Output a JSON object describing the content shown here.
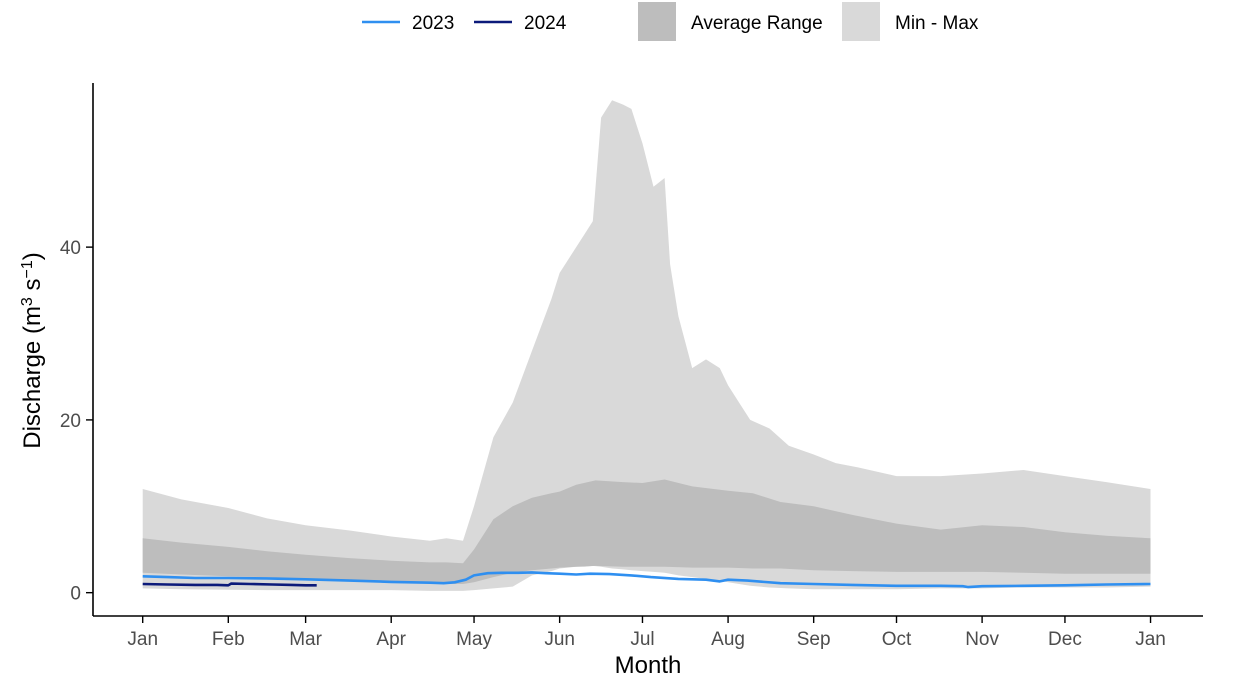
{
  "chart_data": {
    "type": "area",
    "xlabel": "Month",
    "ylabel": "Discharge (m",
    "ylabel_sup1": "3",
    "ylabel_mid": " s",
    "ylabel_sup2": "−1",
    "ylabel_end": ")",
    "x_ticks": [
      "Jan",
      "Feb",
      "Mar",
      "Apr",
      "May",
      "Jun",
      "Jul",
      "Aug",
      "Sep",
      "Oct",
      "Nov",
      "Dec",
      "Jan"
    ],
    "x_tick_days": [
      1,
      32,
      60,
      91,
      121,
      152,
      182,
      213,
      244,
      274,
      305,
      335,
      366
    ],
    "y_ticks": [
      0,
      20,
      40
    ],
    "xlim": [
      -17,
      385
    ],
    "ylim": [
      -2.7,
      59
    ],
    "grid": false,
    "legend_position": "top",
    "legend": [
      {
        "label": "2023",
        "kind": "line",
        "color": "#2f8ff0"
      },
      {
        "label": "2024",
        "kind": "line",
        "color": "#0c1a7a"
      },
      {
        "label": "Average Range",
        "kind": "fill",
        "color": "#bdbdbd"
      },
      {
        "label": "Min - Max",
        "kind": "fill",
        "color": "#d9d9d9"
      }
    ],
    "series": [
      {
        "name": "Min - Max",
        "kind": "band",
        "color": "#d9d9d9",
        "x": [
          1,
          15,
          32,
          46,
          60,
          76,
          91,
          105,
          111,
          117,
          121,
          128,
          135,
          142,
          149,
          152,
          158,
          161,
          164,
          167,
          169,
          171,
          175,
          178,
          182,
          186,
          190,
          192,
          195,
          200,
          205,
          210,
          213,
          217,
          221,
          228,
          235,
          244,
          252,
          260,
          274,
          290,
          305,
          320,
          335,
          350,
          366
        ],
        "low": [
          0.5,
          0.4,
          0.35,
          0.3,
          0.3,
          0.3,
          0.3,
          0.2,
          0.2,
          0.2,
          0.3,
          0.5,
          0.7,
          2.0,
          2.5,
          2.8,
          3.0,
          3.0,
          3.1,
          3.0,
          2.9,
          2.8,
          2.7,
          2.6,
          2.5,
          2.4,
          2.3,
          2.2,
          2.0,
          1.8,
          1.6,
          1.4,
          1.2,
          1.0,
          0.8,
          0.6,
          0.5,
          0.4,
          0.4,
          0.4,
          0.4,
          0.5,
          0.5,
          0.6,
          0.6,
          0.6,
          0.7
        ],
        "high": [
          12.0,
          10.8,
          9.8,
          8.6,
          7.8,
          7.2,
          6.5,
          6.0,
          6.3,
          6.0,
          10.0,
          18.0,
          22.0,
          28.0,
          34.0,
          37.0,
          40.0,
          41.5,
          43.0,
          55.0,
          56.0,
          57.0,
          56.5,
          56.0,
          52.0,
          47.0,
          48.0,
          38.0,
          32.0,
          26.0,
          27.0,
          26.0,
          24.0,
          22.0,
          20.0,
          19.0,
          17.0,
          16.0,
          15.0,
          14.5,
          13.5,
          13.5,
          13.8,
          14.2,
          13.5,
          12.8,
          12.0
        ]
      },
      {
        "name": "Average Range",
        "kind": "band",
        "color": "#bdbdbd",
        "x": [
          1,
          15,
          32,
          46,
          60,
          76,
          91,
          105,
          111,
          117,
          121,
          128,
          135,
          142,
          149,
          152,
          158,
          165,
          175,
          182,
          190,
          200,
          213,
          222,
          232,
          244,
          258,
          274,
          290,
          305,
          320,
          335,
          350,
          366
        ],
        "low": [
          2.3,
          2.1,
          1.9,
          1.8,
          1.6,
          1.4,
          1.3,
          1.1,
          1.0,
          1.0,
          1.2,
          1.8,
          2.3,
          2.6,
          2.8,
          2.9,
          3.0,
          3.1,
          3.0,
          3.0,
          3.0,
          2.9,
          2.9,
          2.8,
          2.8,
          2.6,
          2.5,
          2.4,
          2.4,
          2.4,
          2.3,
          2.2,
          2.2,
          2.2
        ],
        "high": [
          6.3,
          5.8,
          5.3,
          4.8,
          4.4,
          4.0,
          3.7,
          3.5,
          3.5,
          3.4,
          5.0,
          8.5,
          10.0,
          11.0,
          11.5,
          11.7,
          12.5,
          13.0,
          12.8,
          12.7,
          13.1,
          12.3,
          11.8,
          11.5,
          10.5,
          10.0,
          9.0,
          8.0,
          7.3,
          7.8,
          7.6,
          7.0,
          6.6,
          6.3
        ]
      },
      {
        "name": "2023",
        "kind": "line",
        "color": "#2f8ff0",
        "x": [
          1,
          10,
          20,
          32,
          46,
          60,
          76,
          91,
          105,
          110,
          114,
          118,
          121,
          126,
          131,
          137,
          142,
          147,
          152,
          158,
          163,
          170,
          178,
          185,
          195,
          205,
          210,
          213,
          220,
          232,
          244,
          258,
          274,
          290,
          298,
          300,
          305,
          320,
          335,
          350,
          366
        ],
        "y": [
          1.9,
          1.8,
          1.7,
          1.7,
          1.65,
          1.55,
          1.4,
          1.25,
          1.15,
          1.1,
          1.2,
          1.5,
          2.0,
          2.25,
          2.3,
          2.3,
          2.35,
          2.25,
          2.2,
          2.1,
          2.2,
          2.15,
          2.0,
          1.8,
          1.6,
          1.5,
          1.3,
          1.5,
          1.4,
          1.1,
          1.0,
          0.9,
          0.8,
          0.8,
          0.75,
          0.65,
          0.75,
          0.8,
          0.85,
          0.95,
          1.0
        ]
      },
      {
        "name": "2024",
        "kind": "line",
        "color": "#0c1a7a",
        "x": [
          1,
          10,
          20,
          28,
          32,
          33,
          40,
          48,
          55,
          60,
          64
        ],
        "y": [
          1.0,
          0.95,
          0.9,
          0.9,
          0.85,
          1.05,
          1.0,
          0.95,
          0.9,
          0.85,
          0.85
        ]
      }
    ]
  }
}
